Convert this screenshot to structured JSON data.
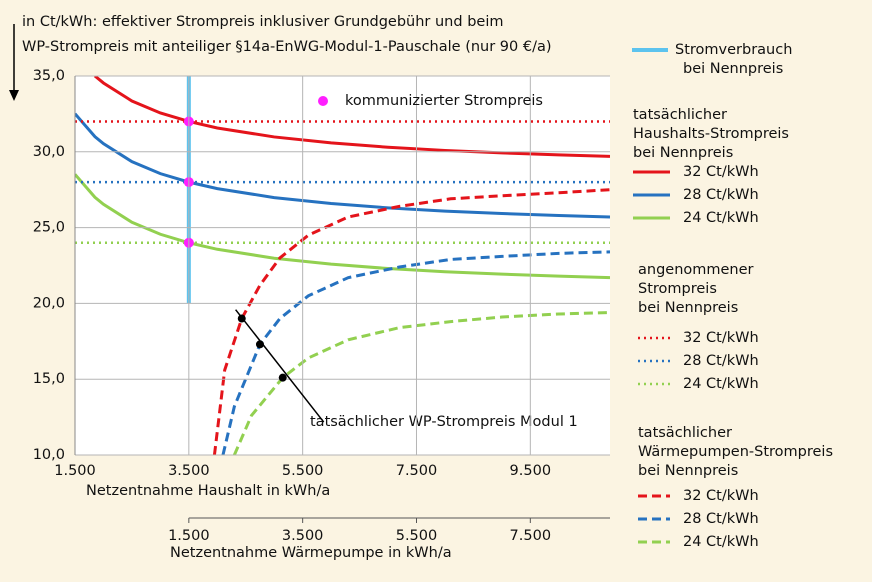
{
  "chart_data": {
    "type": "line",
    "title": [
      "in  Ct/kWh: effektiver Strompreis inklusiver Grundgebühr und beim",
      "WP-Strompreis  mit anteiliger §14a-EnWG-Modul-1-Pauschale  (nur 90 €/a)"
    ],
    "xlabel": "Netzentnahme  Haushalt in kWh/a",
    "x2label": "Netzentnahme  Wärmepumpe in kWh/a",
    "xlim": [
      1500,
      10900
    ],
    "xticks": [
      {
        "value": 1500,
        "label": "1.500"
      },
      {
        "value": 3500,
        "label": "3.500"
      },
      {
        "value": 5500,
        "label": "5.500"
      },
      {
        "value": 7500,
        "label": "7.500"
      },
      {
        "value": 9500,
        "label": "9.500"
      }
    ],
    "x2lim": [
      -500,
      8900
    ],
    "x2ticks": [
      {
        "value": 1500,
        "label": "1.500"
      },
      {
        "value": 3500,
        "label": "3.500"
      },
      {
        "value": 5500,
        "label": "5.500"
      },
      {
        "value": 7500,
        "label": "7.500"
      }
    ],
    "ylim": [
      10,
      35
    ],
    "yticks": [
      {
        "value": 10,
        "label": "10,0"
      },
      {
        "value": 15,
        "label": "15,0"
      },
      {
        "value": 20,
        "label": "20,0"
      },
      {
        "value": 25,
        "label": "25,0"
      },
      {
        "value": 30,
        "label": "30,0"
      },
      {
        "value": 35,
        "label": "35,0"
      }
    ],
    "grid": true,
    "consumption": {
      "name": [
        "Stromverbrauch",
        "bei Nennpreis"
      ],
      "color": "#5cc3ee",
      "x": [
        3500,
        3500
      ],
      "values": [
        20,
        35
      ]
    },
    "communicated": {
      "name": "kommunizierter Strompreis",
      "color": "#ff1fff",
      "x": [
        3500,
        3500,
        3500
      ],
      "values": [
        32,
        28,
        24
      ]
    },
    "groups": [
      {
        "title": [
          "tatsächlicher",
          "Haushalts-Strompreis",
          "bei Nennpreis"
        ],
        "line_style": "solid",
        "axis": "x",
        "series": [
          {
            "name": "32 Ct/kWh",
            "color": "#e4141b",
            "x": [
              1500,
              1850,
              2000,
              2500,
              3000,
              3500,
              4000,
              5000,
              6000,
              7000,
              8000,
              9000,
              10000,
              10900
            ],
            "values": [
              null,
              35.0,
              34.54,
              33.35,
              32.56,
              32.0,
              31.57,
              30.98,
              30.59,
              30.3,
              30.09,
              29.93,
              29.8,
              29.7
            ]
          },
          {
            "name": "28 Ct/kWh",
            "color": "#2672c0",
            "x": [
              1500,
              1850,
              2000,
              2500,
              3000,
              3500,
              4000,
              5000,
              6000,
              7000,
              8000,
              9000,
              10000,
              10900
            ],
            "values": [
              32.51,
              31.0,
              30.54,
              29.35,
              28.56,
              28.0,
              27.57,
              26.98,
              26.59,
              26.3,
              26.09,
              25.93,
              25.8,
              25.7
            ]
          },
          {
            "name": "24 Ct/kWh",
            "color": "#92d050",
            "x": [
              1500,
              1850,
              2000,
              2500,
              3000,
              3500,
              4000,
              5000,
              6000,
              7000,
              8000,
              9000,
              10000,
              10900
            ],
            "values": [
              28.51,
              27.0,
              26.54,
              25.35,
              24.56,
              24.0,
              23.57,
              22.98,
              22.59,
              22.3,
              22.09,
              21.93,
              21.8,
              21.7
            ]
          }
        ]
      },
      {
        "title": [
          "angenommener",
          "Strompreis",
          "bei Nennpreis"
        ],
        "line_style": "dotted",
        "axis": "x",
        "series": [
          {
            "name": "32 Ct/kWh",
            "color": "#e4141b",
            "x": [
              1500,
              10900
            ],
            "values": [
              32,
              32
            ]
          },
          {
            "name": "28 Ct/kWh",
            "color": "#2672c0",
            "x": [
              1500,
              10900
            ],
            "values": [
              28,
              28
            ]
          },
          {
            "name": "24 Ct/kWh",
            "color": "#92d050",
            "x": [
              1500,
              10900
            ],
            "values": [
              24,
              24
            ]
          }
        ]
      },
      {
        "title": [
          "tatsächlicher",
          "Wärmepumpen-Strompreis",
          "bei Nennpreis"
        ],
        "line_style": "dashed",
        "axis": "x2",
        "series": [
          {
            "name": "32 Ct/kWh",
            "color": "#e4141b",
            "x": [
              1950,
              2130,
              2430,
              2750,
              3100,
              3600,
              4300,
              5200,
              6100,
              7000,
              8000,
              8900
            ],
            "values": [
              10,
              15.6,
              19.0,
              21.2,
              23.0,
              24.5,
              25.7,
              26.4,
              26.9,
              27.1,
              27.3,
              27.5
            ]
          },
          {
            "name": "28 Ct/kWh",
            "color": "#2672c0",
            "x": [
              2100,
              2300,
              2750,
              3100,
              3600,
              4300,
              5200,
              6100,
              7000,
              8000,
              8900
            ],
            "values": [
              10,
              13.2,
              17.3,
              19.0,
              20.5,
              21.7,
              22.4,
              22.9,
              23.1,
              23.3,
              23.4
            ]
          },
          {
            "name": "24 Ct/kWh",
            "color": "#92d050",
            "x": [
              2300,
              2600,
              3150,
              3600,
              4300,
              5200,
              6100,
              7000,
              8000,
              8900
            ],
            "values": [
              10,
              12.6,
              15.1,
              16.4,
              17.6,
              18.4,
              18.8,
              19.1,
              19.3,
              19.4
            ]
          }
        ]
      }
    ],
    "modul1": {
      "annotation": "tatsächlicher  WP-Strompreis  Modul 1",
      "color": "#000000",
      "x": [
        2430,
        2750,
        3150
      ],
      "values": [
        19.0,
        17.3,
        15.1
      ]
    }
  }
}
